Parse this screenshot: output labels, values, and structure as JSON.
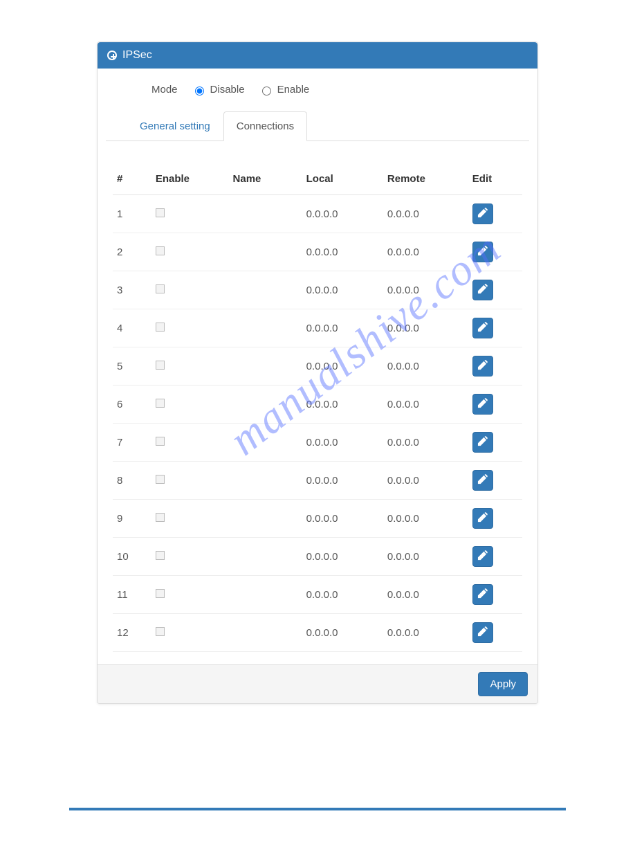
{
  "colors": {
    "primary": "#337ab7",
    "primary_border": "#2e6da4",
    "panel_border": "#dddddd",
    "row_border": "#eeeeee",
    "text": "#555555",
    "heading": "#333333",
    "footer_bg": "#f5f5f5",
    "page_bg": "#ffffff",
    "watermark": "rgba(83,109,254,0.45)"
  },
  "panel": {
    "icon": "plus-circle",
    "title": "IPSec"
  },
  "mode": {
    "label": "Mode",
    "options": [
      {
        "label": "Disable",
        "value": "disable",
        "checked": true
      },
      {
        "label": "Enable",
        "value": "enable",
        "checked": false
      }
    ]
  },
  "tabs": [
    {
      "id": "general",
      "label": "General setting",
      "active": false
    },
    {
      "id": "connections",
      "label": "Connections",
      "active": true
    }
  ],
  "table": {
    "columns": [
      {
        "key": "num",
        "label": "#"
      },
      {
        "key": "enable",
        "label": "Enable"
      },
      {
        "key": "name",
        "label": "Name"
      },
      {
        "key": "local",
        "label": "Local"
      },
      {
        "key": "remote",
        "label": "Remote"
      },
      {
        "key": "edit",
        "label": "Edit"
      }
    ],
    "rows": [
      {
        "num": "1",
        "enable": false,
        "name": "",
        "local": "0.0.0.0",
        "remote": "0.0.0.0"
      },
      {
        "num": "2",
        "enable": false,
        "name": "",
        "local": "0.0.0.0",
        "remote": "0.0.0.0"
      },
      {
        "num": "3",
        "enable": false,
        "name": "",
        "local": "0.0.0.0",
        "remote": "0.0.0.0"
      },
      {
        "num": "4",
        "enable": false,
        "name": "",
        "local": "0.0.0.0",
        "remote": "0.0.0.0"
      },
      {
        "num": "5",
        "enable": false,
        "name": "",
        "local": "0.0.0.0",
        "remote": "0.0.0.0"
      },
      {
        "num": "6",
        "enable": false,
        "name": "",
        "local": "0.0.0.0",
        "remote": "0.0.0.0"
      },
      {
        "num": "7",
        "enable": false,
        "name": "",
        "local": "0.0.0.0",
        "remote": "0.0.0.0"
      },
      {
        "num": "8",
        "enable": false,
        "name": "",
        "local": "0.0.0.0",
        "remote": "0.0.0.0"
      },
      {
        "num": "9",
        "enable": false,
        "name": "",
        "local": "0.0.0.0",
        "remote": "0.0.0.0"
      },
      {
        "num": "10",
        "enable": false,
        "name": "",
        "local": "0.0.0.0",
        "remote": "0.0.0.0"
      },
      {
        "num": "11",
        "enable": false,
        "name": "",
        "local": "0.0.0.0",
        "remote": "0.0.0.0"
      },
      {
        "num": "12",
        "enable": false,
        "name": "",
        "local": "0.0.0.0",
        "remote": "0.0.0.0"
      }
    ]
  },
  "footer": {
    "apply_label": "Apply"
  },
  "watermark": "manualshive.com"
}
